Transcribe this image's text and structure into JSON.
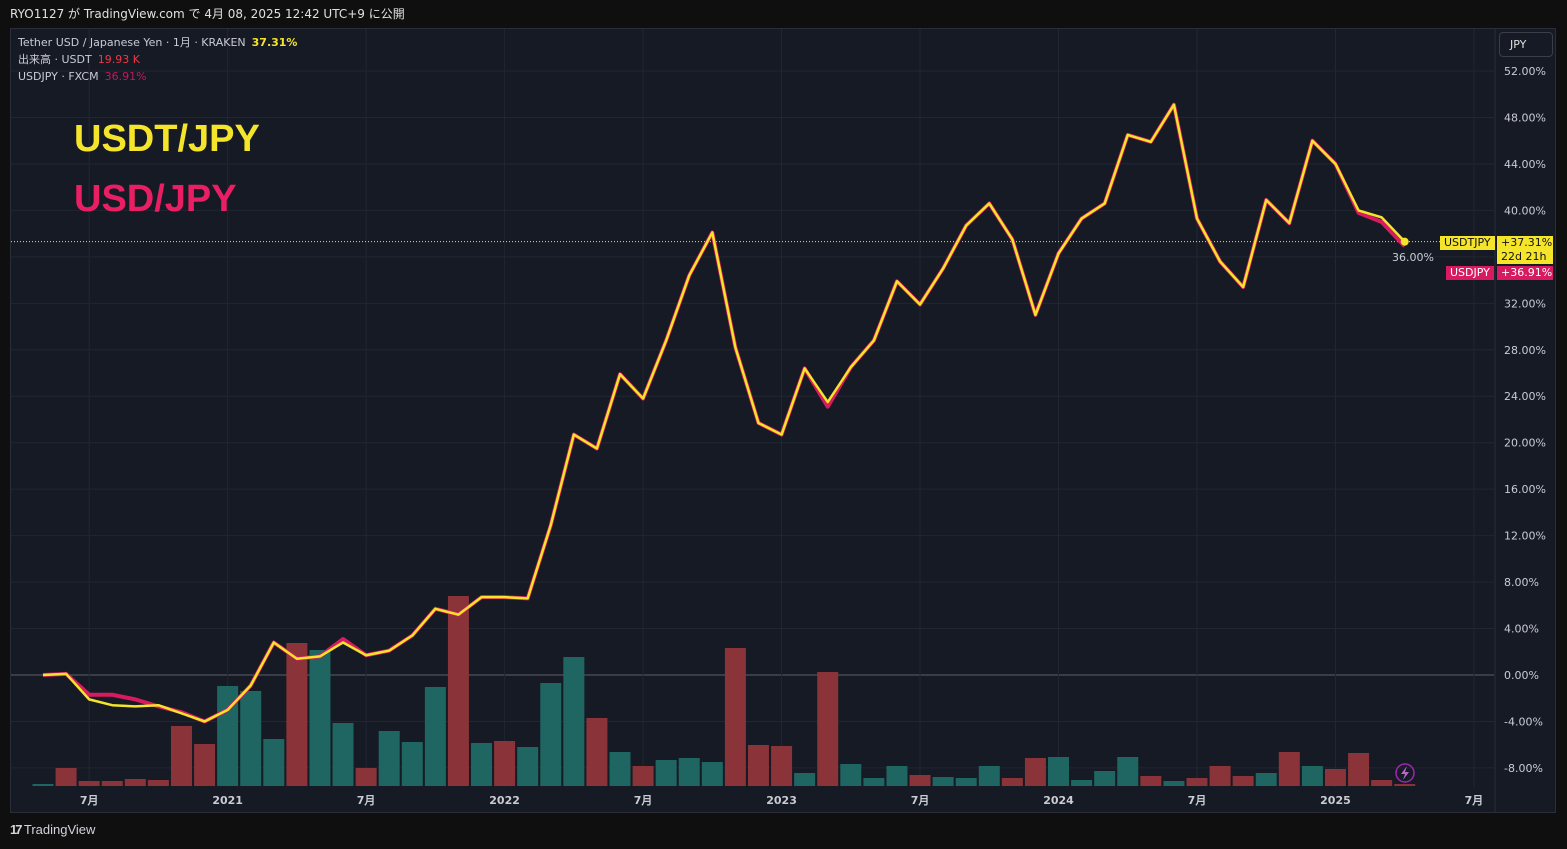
{
  "header": {
    "publish_text": "RYO1127 が TradingView.com で 4月 08, 2025 12:42 UTC+9 に公開"
  },
  "legend": {
    "main_symbol": "Tether USD / Japanese Yen · 1月 · KRAKEN",
    "main_value": "37.31%",
    "volume_label": "出来高 · USDT",
    "volume_value": "19.93 K",
    "compare_symbol": "USDJPY · FXCM",
    "compare_value": "36.91%"
  },
  "annotations": {
    "usdt_label": "USDT/JPY",
    "usd_label": "USD/JPY"
  },
  "currency_button": "JPY",
  "price_tags": {
    "usdt_name": "USDTJPY",
    "usdt_value": "+37.31%",
    "countdown": "22d 21h",
    "usd_name": "USDJPY",
    "usd_value": "+36.91%"
  },
  "footer": {
    "brand": "TradingView"
  },
  "colors": {
    "usdt": "#f5e52a",
    "usd": "#d81b60",
    "vol_up": "#1f6663",
    "vol_down": "#8a3338",
    "background": "#161a25"
  },
  "chart_data": {
    "type": "line",
    "y_unit": "%",
    "ylim": [
      -9.5,
      54
    ],
    "y_ticks": [
      "52.00%",
      "48.00%",
      "44.00%",
      "40.00%",
      "36.00%",
      "32.00%",
      "28.00%",
      "24.00%",
      "20.00%",
      "16.00%",
      "12.00%",
      "8.00%",
      "4.00%",
      "0.00%",
      "-4.00%",
      "-8.00%"
    ],
    "x_ticks": [
      "7月",
      "2021",
      "7月",
      "2022",
      "7月",
      "2023",
      "7月",
      "2024",
      "7月",
      "2025",
      "7月"
    ],
    "x": [
      "2020-05",
      "2020-06",
      "2020-07",
      "2020-08",
      "2020-09",
      "2020-10",
      "2020-11",
      "2020-12",
      "2021-01",
      "2021-02",
      "2021-03",
      "2021-04",
      "2021-05",
      "2021-06",
      "2021-07",
      "2021-08",
      "2021-09",
      "2021-10",
      "2021-11",
      "2021-12",
      "2022-01",
      "2022-02",
      "2022-03",
      "2022-04",
      "2022-05",
      "2022-06",
      "2022-07",
      "2022-08",
      "2022-09",
      "2022-10",
      "2022-11",
      "2022-12",
      "2023-01",
      "2023-02",
      "2023-03",
      "2023-04",
      "2023-05",
      "2023-06",
      "2023-07",
      "2023-08",
      "2023-09",
      "2023-10",
      "2023-11",
      "2023-12",
      "2024-01",
      "2024-02",
      "2024-03",
      "2024-04",
      "2024-05",
      "2024-06",
      "2024-07",
      "2024-08",
      "2024-09",
      "2024-10",
      "2024-11",
      "2024-12",
      "2025-01",
      "2025-02",
      "2025-03",
      "2025-04"
    ],
    "series": [
      {
        "name": "USDJPY",
        "color": "#d81b60",
        "values": [
          0,
          0.1,
          -1.7,
          -1.7,
          -2.1,
          -2.7,
          -3.2,
          -4.0,
          -3.0,
          -0.9,
          2.8,
          1.4,
          1.6,
          3.1,
          1.7,
          2.1,
          3.4,
          5.7,
          5.2,
          6.7,
          6.7,
          6.6,
          12.9,
          20.7,
          19.5,
          25.9,
          23.8,
          28.8,
          34.4,
          38.1,
          28.2,
          21.7,
          20.7,
          26.4,
          23.1,
          26.5,
          28.8,
          33.9,
          31.9,
          35.0,
          38.7,
          40.6,
          37.5,
          31.0,
          36.3,
          39.3,
          40.6,
          46.5,
          45.9,
          49.1,
          39.3,
          35.6,
          33.4,
          40.9,
          38.9,
          46.0,
          44.0,
          39.8,
          39.0,
          36.91
        ]
      },
      {
        "name": "USDTJPY",
        "color": "#f5e52a",
        "values": [
          0,
          0.1,
          -2.1,
          -2.6,
          -2.7,
          -2.6,
          -3.3,
          -4.0,
          -3.0,
          -0.9,
          2.8,
          1.4,
          1.6,
          2.8,
          1.7,
          2.1,
          3.4,
          5.7,
          5.2,
          6.7,
          6.7,
          6.6,
          12.9,
          20.7,
          19.5,
          25.9,
          23.8,
          28.8,
          34.4,
          38.1,
          28.2,
          21.7,
          20.7,
          26.4,
          23.5,
          26.5,
          28.8,
          33.9,
          31.9,
          35.0,
          38.7,
          40.6,
          37.5,
          31.0,
          36.3,
          39.3,
          40.6,
          46.5,
          45.9,
          49.1,
          39.3,
          35.6,
          33.4,
          40.9,
          38.9,
          46.0,
          44.0,
          40.0,
          39.4,
          37.31
        ]
      }
    ],
    "volume": {
      "unit": "K",
      "values": [
        20,
        180,
        50,
        50,
        70,
        60,
        600,
        420,
        1000,
        950,
        470,
        1430,
        1360,
        630,
        180,
        550,
        440,
        990,
        1900,
        430,
        450,
        390,
        1030,
        1290,
        680,
        340,
        200,
        260,
        280,
        240,
        1380,
        410,
        400,
        130,
        1140,
        220,
        80,
        200,
        110,
        90,
        80,
        200,
        80,
        280,
        290,
        60,
        150,
        290,
        100,
        50,
        80,
        200,
        100,
        130,
        340,
        200,
        170,
        330,
        60,
        19.93
      ],
      "direction": [
        "up",
        "down",
        "down",
        "down",
        "down",
        "down",
        "down",
        "down",
        "up",
        "up",
        "up",
        "down",
        "up",
        "up",
        "down",
        "up",
        "up",
        "up",
        "down",
        "up",
        "down",
        "up",
        "up",
        "up",
        "down",
        "up",
        "down",
        "up",
        "up",
        "up",
        "down",
        "down",
        "down",
        "up",
        "down",
        "up",
        "up",
        "up",
        "down",
        "up",
        "up",
        "up",
        "down",
        "down",
        "up",
        "up",
        "up",
        "up",
        "down",
        "up",
        "down",
        "down",
        "down",
        "up",
        "down",
        "up",
        "down",
        "down",
        "down",
        "down"
      ]
    },
    "last_value_line": 37.31,
    "grid": true
  }
}
